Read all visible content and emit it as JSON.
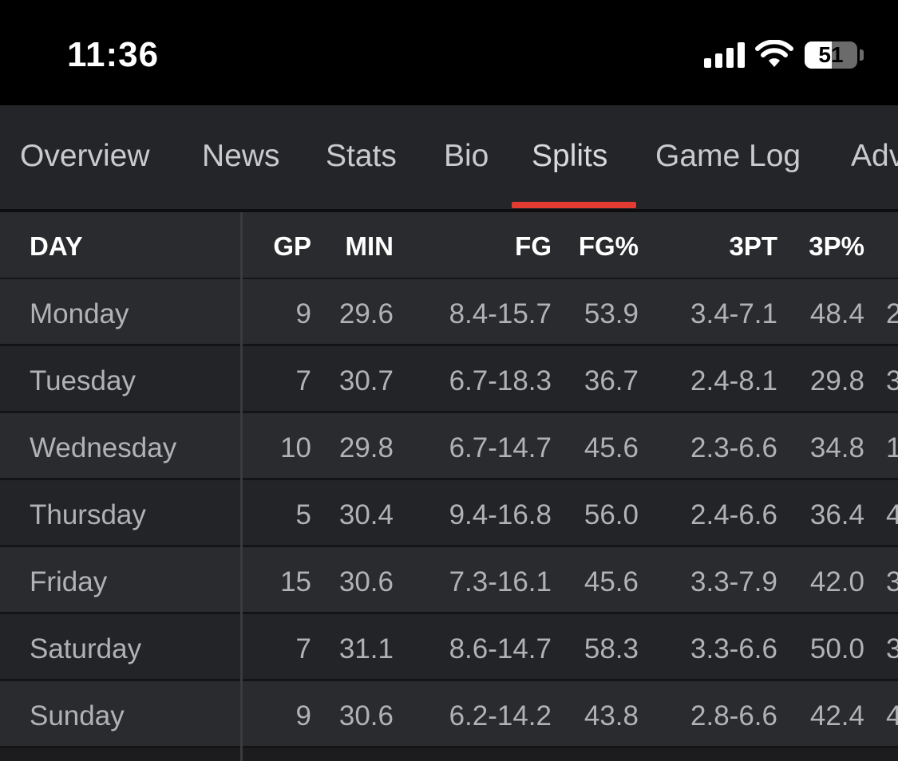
{
  "status_bar": {
    "time": "11:36",
    "battery": "51",
    "battery_percent": 51
  },
  "tabs": [
    {
      "label": "Overview"
    },
    {
      "label": "News"
    },
    {
      "label": "Stats"
    },
    {
      "label": "Bio"
    },
    {
      "label": "Splits",
      "active": true
    },
    {
      "label": "Game Log"
    },
    {
      "label": "Adv"
    }
  ],
  "table": {
    "headers": {
      "day": "DAY",
      "gp": "GP",
      "min": "MIN",
      "fg": "FG",
      "fg_pct": "FG%",
      "three_pt": "3PT",
      "three_pct": "3P%"
    },
    "rows": [
      {
        "day": "Monday",
        "gp": "9",
        "min": "29.6",
        "fg": "8.4-15.7",
        "fg_pct": "53.9",
        "three_pt": "3.4-7.1",
        "three_pct": "48.4",
        "cut": "2"
      },
      {
        "day": "Tuesday",
        "gp": "7",
        "min": "30.7",
        "fg": "6.7-18.3",
        "fg_pct": "36.7",
        "three_pt": "2.4-8.1",
        "three_pct": "29.8",
        "cut": "3"
      },
      {
        "day": "Wednesday",
        "gp": "10",
        "min": "29.8",
        "fg": "6.7-14.7",
        "fg_pct": "45.6",
        "three_pt": "2.3-6.6",
        "three_pct": "34.8",
        "cut": "1"
      },
      {
        "day": "Thursday",
        "gp": "5",
        "min": "30.4",
        "fg": "9.4-16.8",
        "fg_pct": "56.0",
        "three_pt": "2.4-6.6",
        "three_pct": "36.4",
        "cut": "4"
      },
      {
        "day": "Friday",
        "gp": "15",
        "min": "30.6",
        "fg": "7.3-16.1",
        "fg_pct": "45.6",
        "three_pt": "3.3-7.9",
        "three_pct": "42.0",
        "cut": "3"
      },
      {
        "day": "Saturday",
        "gp": "7",
        "min": "31.1",
        "fg": "8.6-14.7",
        "fg_pct": "58.3",
        "three_pt": "3.3-6.6",
        "three_pct": "50.0",
        "cut": "3"
      },
      {
        "day": "Sunday",
        "gp": "9",
        "min": "30.6",
        "fg": "6.2-14.2",
        "fg_pct": "43.8",
        "three_pt": "2.8-6.6",
        "three_pct": "42.4",
        "cut": "4"
      }
    ]
  }
}
